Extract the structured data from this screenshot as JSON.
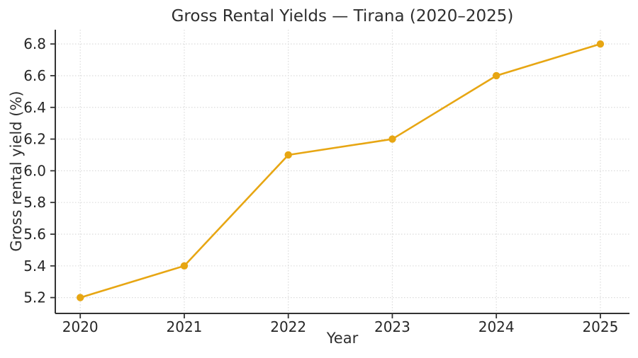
{
  "chart_data": {
    "type": "line",
    "title": "Gross Rental Yields — Tirana (2020–2025)",
    "xlabel": "Year",
    "ylabel": "Gross rental yield (%)",
    "x": [
      2020,
      2021,
      2022,
      2023,
      2024,
      2025
    ],
    "series": [
      {
        "name": "Gross rental yield",
        "values": [
          5.2,
          5.4,
          6.1,
          6.2,
          6.6,
          6.8
        ]
      }
    ],
    "yticks": [
      5.2,
      5.4,
      5.6,
      5.8,
      6.0,
      6.2,
      6.4,
      6.6,
      6.8
    ],
    "ylim": [
      5.1,
      6.89
    ],
    "xlim": [
      2019.76,
      2025.28
    ],
    "grid": true,
    "grid_linestyle": "dotted",
    "legend_position": "none",
    "marker": "circle",
    "colors": {
      "line": "#E7A613",
      "marker": "#E7A613",
      "axis": "#333333",
      "tick_label": "#262626",
      "grid": "#DBDBDB",
      "title": "#2E2E2E",
      "background": "#FFFFFF"
    }
  }
}
